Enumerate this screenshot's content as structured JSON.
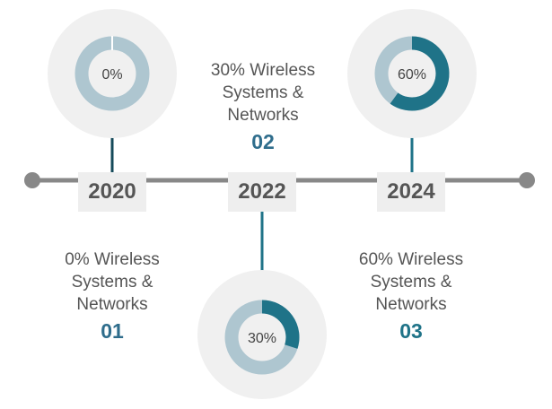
{
  "colors": {
    "accent_dark": "#1f7388",
    "accent_deep": "#154a5a",
    "accent_light": "#aec6d0",
    "halo": "#f0f0f0",
    "line": "#888888",
    "year_box": "#eeeeee",
    "text": "#555555"
  },
  "milestones": [
    {
      "year": "2020",
      "percent_label": "0%",
      "percent": 0,
      "description": "0% Wireless\nSystems &\nNetworks",
      "number": "01",
      "number_color": "#2f6d8c"
    },
    {
      "year": "2022",
      "percent_label": "30%",
      "percent": 30,
      "description": "30% Wireless\nSystems &\nNetworks",
      "number": "02",
      "number_color": "#2f6d8c"
    },
    {
      "year": "2024",
      "percent_label": "60%",
      "percent": 60,
      "description": "60% Wireless\nSystems &\nNetworks",
      "number": "03",
      "number_color": "#1f7388"
    }
  ]
}
